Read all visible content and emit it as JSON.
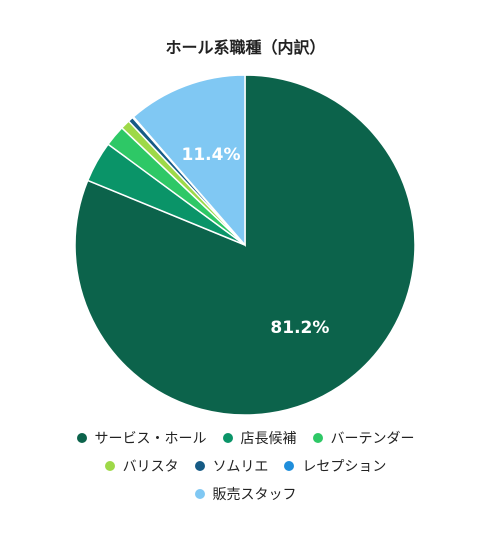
{
  "chart_data": {
    "type": "pie",
    "title": "ホール系職種（内訳）",
    "start_angle_deg": 0,
    "direction": "clockwise",
    "slices": [
      {
        "name": "サービス・ホール",
        "value": 81.2,
        "color": "#0c634b",
        "label": "81.2%"
      },
      {
        "name": "店長候補",
        "value": 3.9,
        "color": "#0a9468",
        "label": ""
      },
      {
        "name": "バーテンダー",
        "value": 2.0,
        "color": "#2ec866",
        "label": ""
      },
      {
        "name": "バリスタ",
        "value": 0.9,
        "color": "#9ed948",
        "label": ""
      },
      {
        "name": "ソムリエ",
        "value": 0.5,
        "color": "#165b85",
        "label": ""
      },
      {
        "name": "レセプション",
        "value": 0.1,
        "color": "#1f8edb",
        "label": ""
      },
      {
        "name": "販売スタッフ",
        "value": 11.4,
        "color": "#80c8f3",
        "label": "11.4%"
      }
    ],
    "legend_position": "bottom"
  }
}
